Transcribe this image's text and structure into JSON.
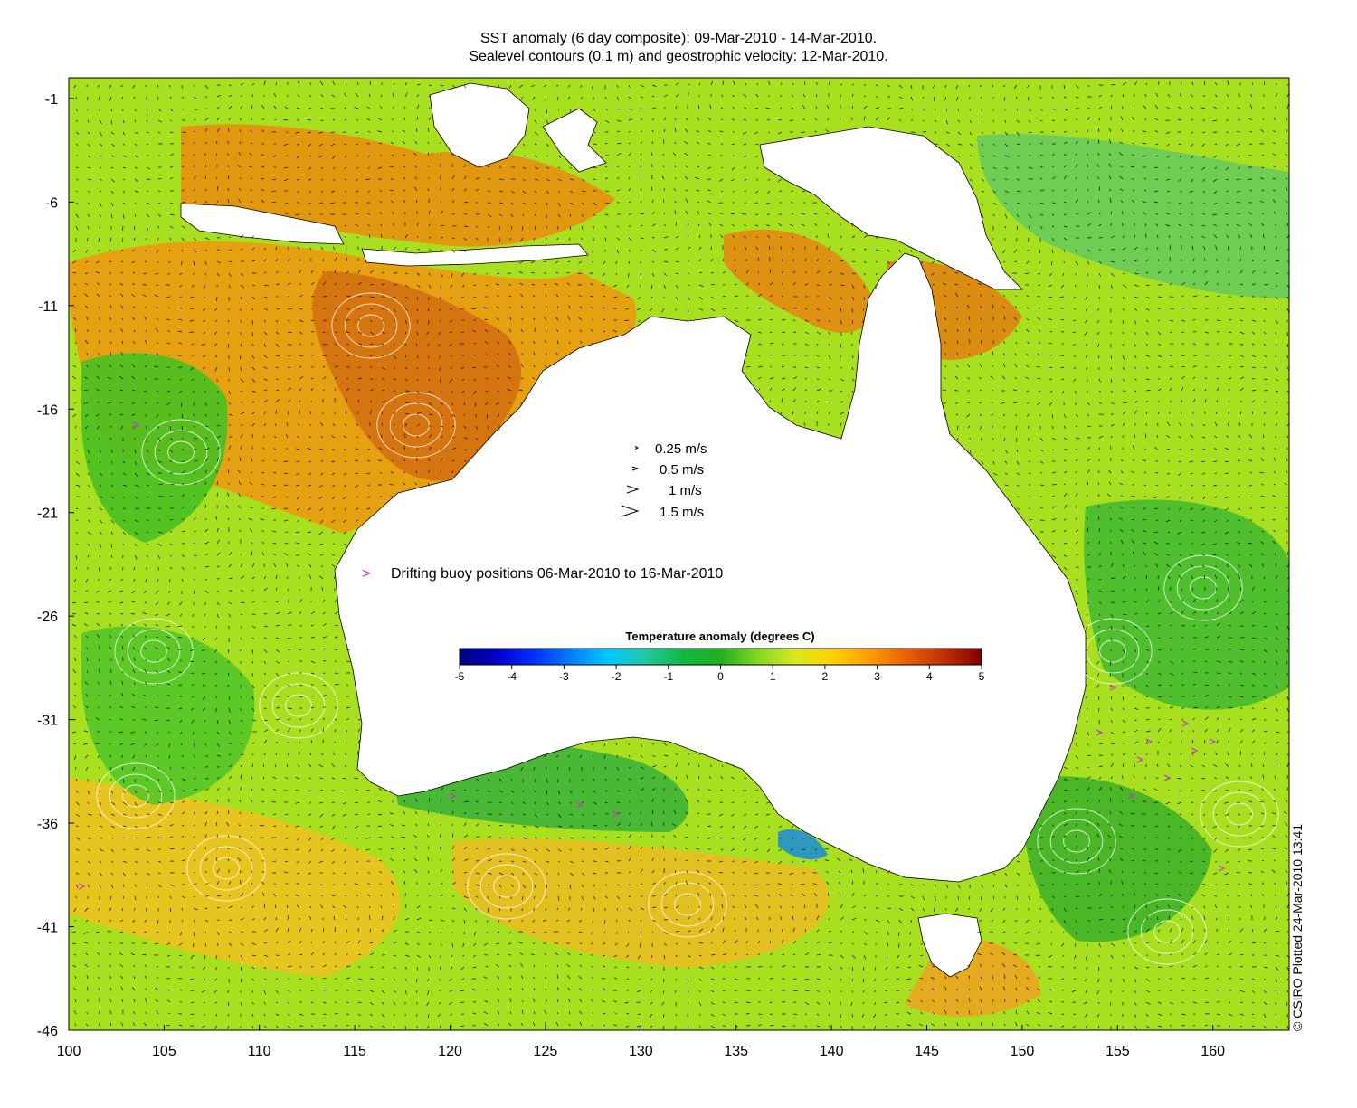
{
  "header": {
    "title_line1": "SST anomaly (6 day composite): 09-Mar-2010 - 14-Mar-2010.",
    "title_line2": "Sealevel contours (0.1 m) and geostrophic velocity: 12-Mar-2010."
  },
  "map": {
    "lon_range": [
      100,
      164
    ],
    "lat_range": [
      -46,
      0
    ],
    "x_ticks": [
      "100",
      "105",
      "110",
      "115",
      "120",
      "125",
      "130",
      "135",
      "140",
      "145",
      "150",
      "155",
      "160"
    ],
    "y_ticks": [
      "-1",
      "-6",
      "-11",
      "-16",
      "-21",
      "-26",
      "-31",
      "-36",
      "-41",
      "-46"
    ],
    "ocean_color": "#a8e020",
    "land_color": "#ffffff"
  },
  "velocity_legend": {
    "items": [
      {
        "label": "0.25 m/s",
        "speed": 0.25
      },
      {
        "label": "0.5 m/s",
        "speed": 0.5
      },
      {
        "label": "1 m/s",
        "speed": 1
      },
      {
        "label": "1.5 m/s",
        "speed": 1.5
      }
    ]
  },
  "buoy_legend": {
    "symbol": ">",
    "label": "Drifting buoy positions 06-Mar-2010 to 16-Mar-2010",
    "color": "#cc33cc"
  },
  "colorbar": {
    "title": "Temperature anomaly (degrees C)",
    "min": -5,
    "max": 5,
    "tick_labels": [
      "-5",
      "-4",
      "-3",
      "-2",
      "-1",
      "0",
      "1",
      "2",
      "3",
      "4",
      "5"
    ],
    "colors": [
      "#00007f",
      "#0000c8",
      "#0030ff",
      "#0080ff",
      "#00c8ff",
      "#20c8a0",
      "#10b840",
      "#20b020",
      "#80d820",
      "#d8e820",
      "#ffd000",
      "#ff9c00",
      "#e86000",
      "#c03000",
      "#800000"
    ]
  },
  "credit": "© CSIRO Plotted 24-Mar-2010 13:41"
}
